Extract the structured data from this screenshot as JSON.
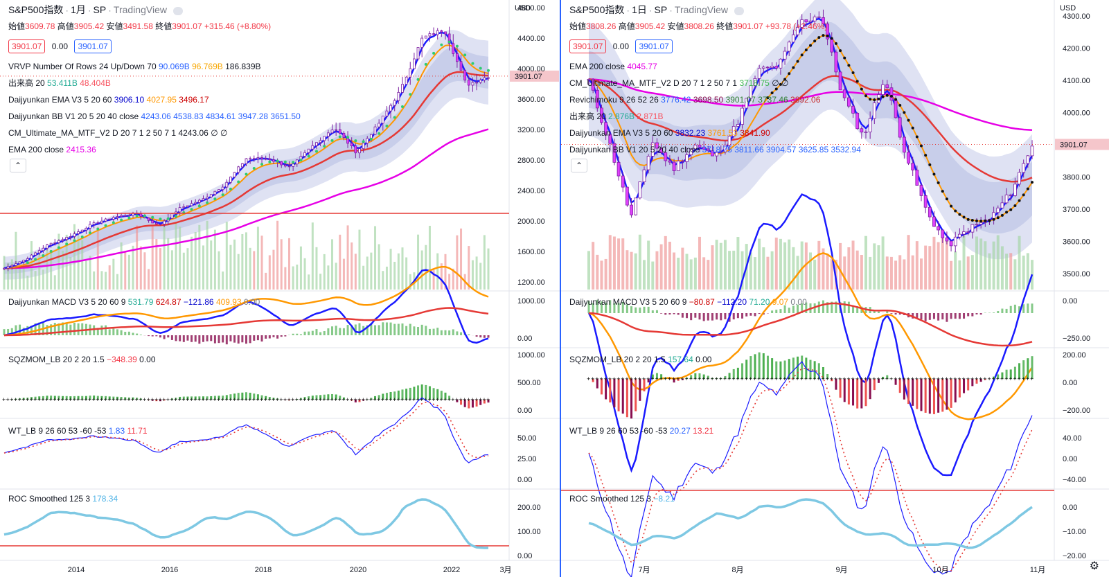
{
  "left": {
    "symbol": "S&P500指数",
    "interval": "1月",
    "exchange": "SP",
    "source": "TradingView",
    "ohlc": {
      "o_label": "始値",
      "o": "3609.78",
      "h_label": "高値",
      "h": "3905.42",
      "l_label": "安値",
      "l": "3491.58",
      "c_label": "終値",
      "c": "3901.07",
      "change": "+315.46 (+8.80%)"
    },
    "bid": "3901.07",
    "spread": "0.00",
    "ask": "3901.07",
    "indicators": [
      {
        "name": "VRVP Number Of Rows 24 Up/Down 70",
        "v1": "90.069B",
        "v2": "96.769B",
        "v3": "186.839B"
      },
      {
        "name": "出来高 20",
        "v1": "53.411B",
        "v2": "48.404B"
      },
      {
        "name": "Daijyunkan EMA V3 5 20 60",
        "v1": "3906.10",
        "v2": "4027.95",
        "v3": "3496.17"
      },
      {
        "name": "Daijyunkan BB V1 20 5 20 40 close",
        "v1": "4243.06",
        "v2": "4538.83",
        "v3": "4834.61",
        "v4": "3947.28",
        "v5": "3651.50"
      },
      {
        "name": "CM_Ultimate_MA_MTF_V2 D 20 7 1 2 50 7 1",
        "v1": "4243.06",
        "v2": "∅ ∅"
      },
      {
        "name": "EMA 200 close",
        "v1": "2415.36"
      }
    ],
    "price_scale_unit": "USD",
    "price_ticks": [
      "4800.00",
      "4400.00",
      "4000.00",
      "3600.00",
      "3200.00",
      "2800.00",
      "2400.00",
      "2000.00",
      "1600.00",
      "1200.00"
    ],
    "last_price": "3901.07",
    "macd": {
      "name": "Daijyunkan MACD V3 5 20 60 9",
      "v1": "531.79",
      "v2": "624.87",
      "v3": "−121.86",
      "v4": "409.93",
      "v5": "0.00",
      "ticks": [
        "1000.00",
        "0.00"
      ]
    },
    "sqz": {
      "name": "SQZMOM_LB 20 2 20 1.5",
      "v1": "−348.39",
      "v2": "0.00",
      "ticks": [
        "1000.00",
        "500.00",
        "0.00"
      ]
    },
    "wt": {
      "name": "WT_LB 9 26 60 53 -60 -53",
      "v1": "1.83",
      "v2": "11.71",
      "ticks": [
        "50.00",
        "25.00",
        "0.00"
      ]
    },
    "roc": {
      "name": "ROC Smoothed 125 3",
      "v1": "178.34",
      "ticks": [
        "200.00",
        "100.00",
        "0.00"
      ]
    },
    "time_ticks": [
      "2014",
      "2016",
      "2018",
      "2020",
      "2022",
      "3月"
    ],
    "chart_data": {
      "type": "candlestick",
      "title": "S&P500指数 · 1月 · SP",
      "x": [
        "2012-07",
        "2013-01",
        "2013-07",
        "2014-01",
        "2014-07",
        "2015-01",
        "2015-07",
        "2016-01",
        "2016-07",
        "2017-01",
        "2017-07",
        "2018-01",
        "2018-07",
        "2019-01",
        "2019-07",
        "2020-01",
        "2020-04",
        "2020-07",
        "2021-01",
        "2021-07",
        "2022-01",
        "2022-06",
        "2022-10"
      ],
      "close": [
        1380,
        1500,
        1690,
        1800,
        1960,
        2050,
        2100,
        1940,
        2170,
        2280,
        2470,
        2820,
        2820,
        2700,
        2980,
        3230,
        2900,
        3270,
        3710,
        4400,
        4515,
        3785,
        3901
      ],
      "ylim": [
        1100,
        4900
      ]
    }
  },
  "right": {
    "symbol": "S&P500指数",
    "interval": "1日",
    "exchange": "SP",
    "source": "TradingView",
    "ohlc": {
      "o_label": "始値",
      "o": "3808.26",
      "h_label": "高値",
      "h": "3905.42",
      "l_label": "安値",
      "l": "3808.26",
      "c_label": "終値",
      "c": "3901.07",
      "change": "+93.78 (+2.46%)"
    },
    "bid": "3901.07",
    "spread": "0.00",
    "ask": "3901.07",
    "indicators": [
      {
        "name": "EMA 200 close",
        "v1": "4045.77"
      },
      {
        "name": "CM_Ultimate_MA_MTF_V2 D 20 7 1 2 50 7 1",
        "v1": "3718.75",
        "v2": "∅ ∅"
      },
      {
        "name": "Revichimoku 9 26 52 26",
        "v1": "3776.42",
        "v2": "3698.50",
        "v3": "3901.07",
        "v4": "3737.46",
        "v5": "3892.06"
      },
      {
        "name": "出来高 20",
        "v1": "2.876B",
        "v2": "2.871B"
      },
      {
        "name": "Daijyunkan EMA V3 5 20 60",
        "v1": "3832.23",
        "v2": "3761.53",
        "v3": "3841.90"
      },
      {
        "name": "Daijyunkan BB V1 20 5 20 40 close",
        "v1": "3718.75",
        "v2": "3811.66",
        "v3": "3904.57",
        "v4": "3625.85",
        "v5": "3532.94"
      }
    ],
    "price_scale_unit": "USD",
    "price_ticks": [
      "4300.00",
      "4200.00",
      "4100.00",
      "4000.00",
      "3800.00",
      "3700.00",
      "3600.00",
      "3500.00"
    ],
    "last_price": "3901.07",
    "macd": {
      "name": "Daijyunkan MACD V3 5 20 60 9",
      "v1": "−80.87",
      "v2": "−112.20",
      "v3": "71.20",
      "v4": "9.07",
      "v5": "0.00",
      "ticks": [
        "0.00",
        "−250.00"
      ]
    },
    "sqz": {
      "name": "SQZMOM_LB 20 2 20 1.5",
      "v1": "157.64",
      "v2": "0.00",
      "ticks": [
        "200.00",
        "0.00",
        "−200.00"
      ]
    },
    "wt": {
      "name": "WT_LB 9 26 60 53 -60 -53",
      "v1": "20.27",
      "v2": "13.21",
      "ticks": [
        "40.00",
        "0.00",
        "−40.00"
      ]
    },
    "roc": {
      "name": "ROC Smoothed 125 3",
      "v1": "−8.21",
      "ticks": [
        "0.00",
        "−10.00",
        "−20.00"
      ]
    },
    "time_ticks": [
      "7月",
      "8月",
      "9月",
      "10月",
      "11月"
    ],
    "chart_data": {
      "type": "candlestick",
      "title": "S&P500指数 · 1日 · SP",
      "x": [
        "2022-06-01",
        "2022-06-10",
        "2022-06-17",
        "2022-06-24",
        "2022-07-01",
        "2022-07-08",
        "2022-07-15",
        "2022-07-22",
        "2022-07-29",
        "2022-08-05",
        "2022-08-12",
        "2022-08-16",
        "2022-08-26",
        "2022-09-02",
        "2022-09-12",
        "2022-09-16",
        "2022-09-23",
        "2022-09-30",
        "2022-10-07",
        "2022-10-13",
        "2022-10-21",
        "2022-10-28"
      ],
      "close": [
        4100,
        3900,
        3675,
        3910,
        3825,
        3900,
        3863,
        3962,
        4130,
        4145,
        4280,
        4305,
        4057,
        3924,
        4110,
        3873,
        3693,
        3586,
        3639,
        3670,
        3752,
        3901
      ],
      "ylim": [
        3450,
        4350
      ]
    }
  }
}
